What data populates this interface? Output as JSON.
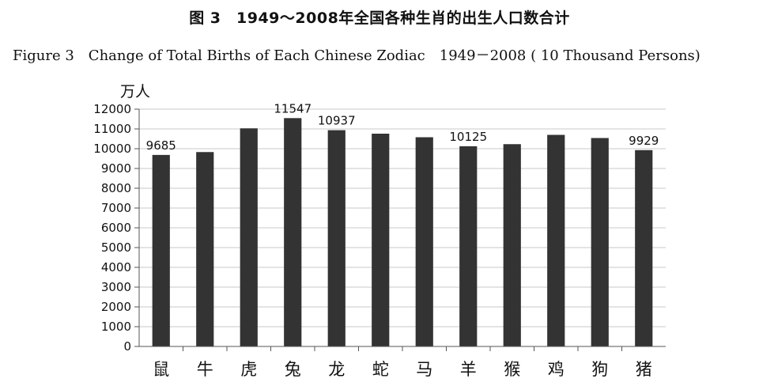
{
  "figure": {
    "title_cn": "图 3　1949～2008年全国各种生肖的出生人口数合计",
    "title_en": "Figure 3　Change of Total Births of Each Chinese Zodiac　1949－2008 ( 10 Thousand Persons)"
  },
  "chart_data": {
    "type": "bar",
    "ylabel": "万人",
    "xlabel": "",
    "categories": [
      "鼠",
      "牛",
      "虎",
      "兔",
      "龙",
      "蛇",
      "马",
      "羊",
      "猴",
      "鸡",
      "狗",
      "猪"
    ],
    "values": [
      9685,
      9830,
      11030,
      11547,
      10937,
      10760,
      10580,
      10125,
      10230,
      10700,
      10540,
      9929
    ],
    "data_labels": {
      "鼠": "9685",
      "兔": "11547",
      "龙": "10937",
      "羊": "10125",
      "猪": "9929"
    },
    "ylim": [
      0,
      12000
    ],
    "yticks": [
      0,
      1000,
      2000,
      3000,
      4000,
      5000,
      6000,
      7000,
      8000,
      9000,
      10000,
      11000,
      12000
    ],
    "grid": true,
    "legend": "none",
    "bar_color": "#333333",
    "grid_color": "#c8c8c8"
  }
}
